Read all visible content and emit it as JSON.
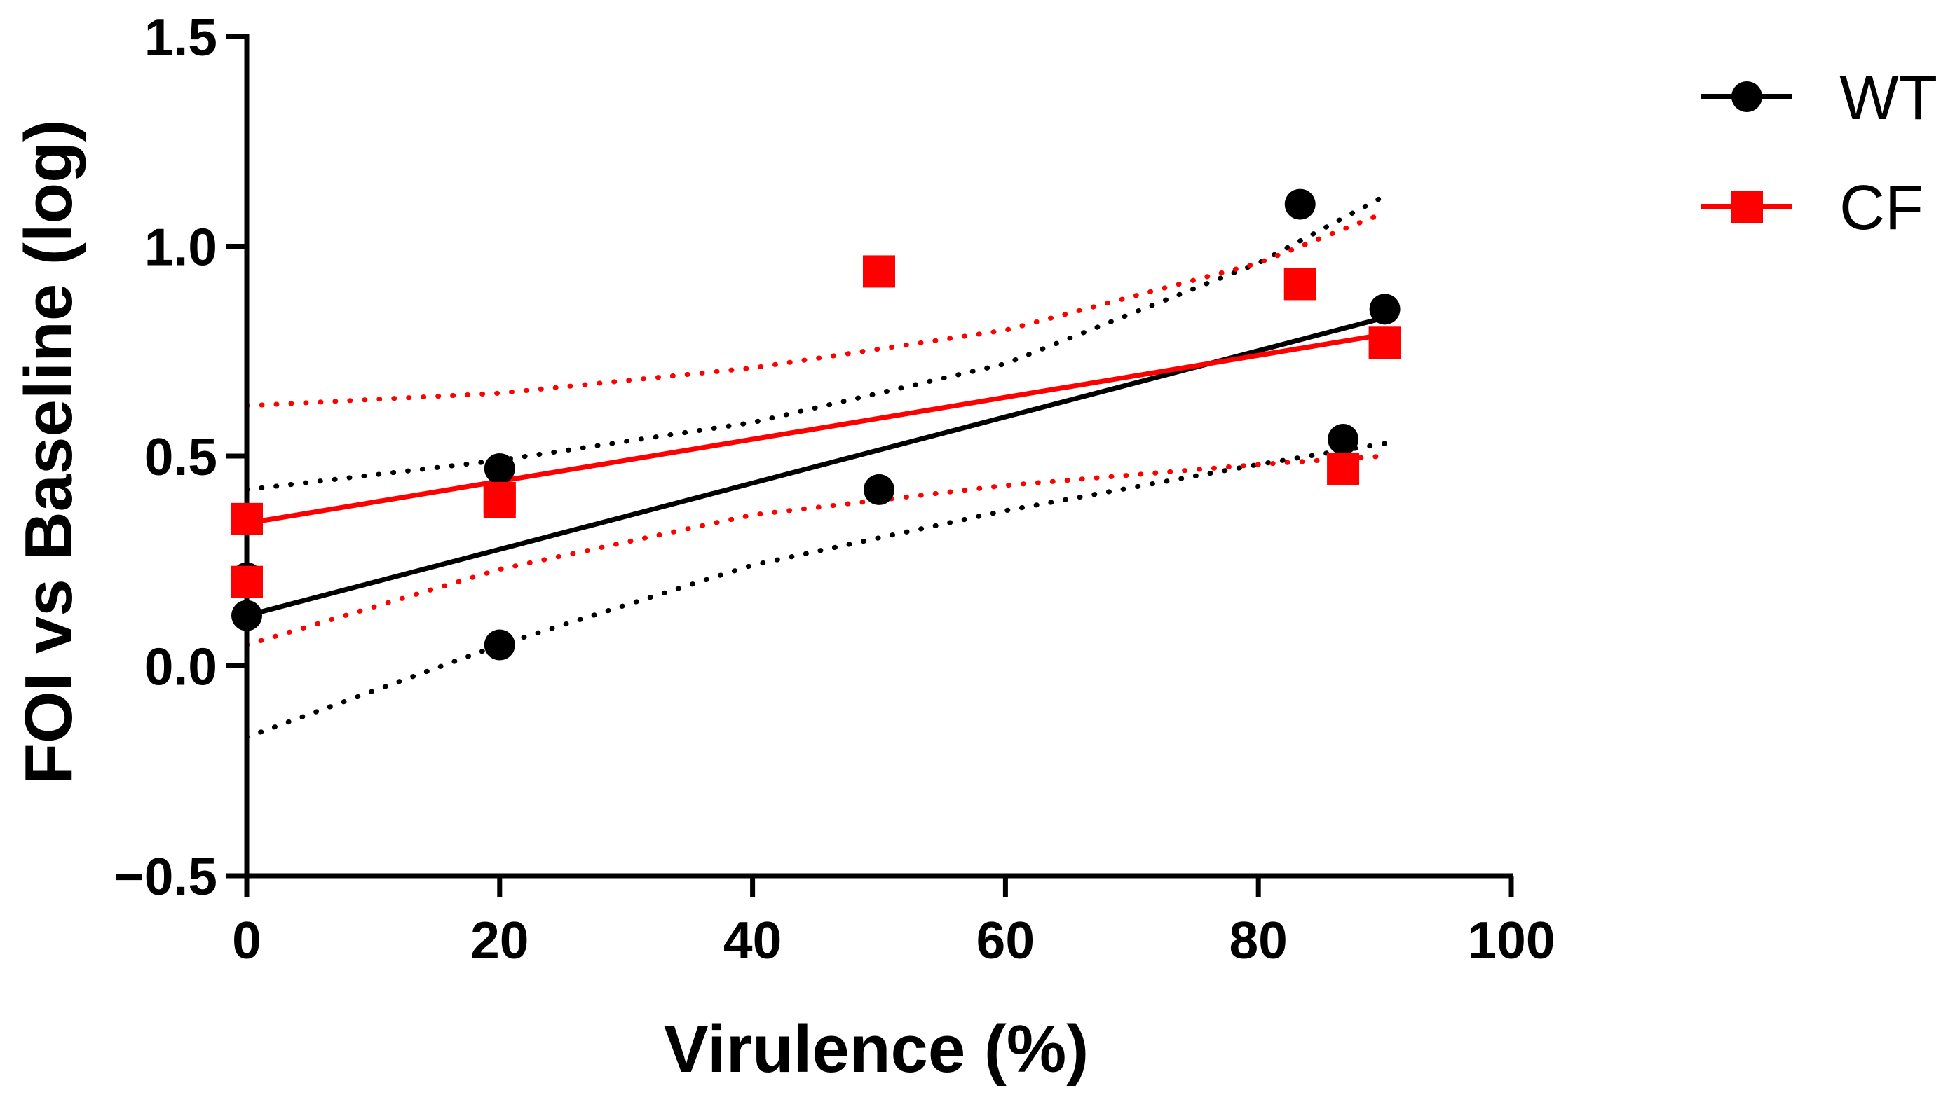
{
  "chart_data": {
    "type": "scatter",
    "title": "",
    "xlabel": "Virulence (%)",
    "ylabel": "FOI vs Baseline (log)",
    "xlim": [
      0,
      100
    ],
    "ylim": [
      -0.5,
      1.5
    ],
    "x_ticks": [
      0,
      20,
      40,
      60,
      80,
      100
    ],
    "x_tick_labels": [
      "0",
      "20",
      "40",
      "60",
      "80",
      "100"
    ],
    "y_ticks": [
      -0.5,
      0.0,
      0.5,
      1.0,
      1.5
    ],
    "y_tick_labels": [
      "−0.5",
      "0.0",
      "0.5",
      "1.0",
      "1.5"
    ],
    "legend_position": "top-right",
    "series": [
      {
        "name": "WT",
        "color": "#000000",
        "marker": "circle",
        "points": [
          [
            0,
            0.21
          ],
          [
            0,
            0.12
          ],
          [
            20,
            0.47
          ],
          [
            20,
            0.05
          ],
          [
            50,
            0.42
          ],
          [
            83.3,
            1.1
          ],
          [
            86.7,
            0.54
          ],
          [
            90,
            0.85
          ]
        ],
        "fit_line": [
          [
            0,
            0.12
          ],
          [
            90,
            0.83
          ]
        ],
        "ci_upper": [
          [
            0,
            0.42
          ],
          [
            20,
            0.49
          ],
          [
            40,
            0.58
          ],
          [
            60,
            0.72
          ],
          [
            80,
            0.96
          ],
          [
            90,
            1.12
          ]
        ],
        "ci_lower": [
          [
            0,
            -0.17
          ],
          [
            20,
            0.05
          ],
          [
            40,
            0.24
          ],
          [
            60,
            0.37
          ],
          [
            80,
            0.48
          ],
          [
            90,
            0.53
          ]
        ]
      },
      {
        "name": "CF",
        "color": "#ff0000",
        "marker": "square",
        "points": [
          [
            0,
            0.35
          ],
          [
            0,
            0.2
          ],
          [
            20,
            0.4
          ],
          [
            20,
            0.39
          ],
          [
            50,
            0.94
          ],
          [
            83.3,
            0.91
          ],
          [
            86.7,
            0.47
          ],
          [
            90,
            0.77
          ]
        ],
        "fit_line": [
          [
            0,
            0.34
          ],
          [
            90,
            0.79
          ]
        ],
        "ci_upper": [
          [
            0,
            0.62
          ],
          [
            20,
            0.65
          ],
          [
            40,
            0.71
          ],
          [
            60,
            0.8
          ],
          [
            80,
            0.96
          ],
          [
            90,
            1.08
          ]
        ],
        "ci_lower": [
          [
            0,
            0.05
          ],
          [
            20,
            0.23
          ],
          [
            40,
            0.36
          ],
          [
            60,
            0.43
          ],
          [
            80,
            0.48
          ],
          [
            90,
            0.5
          ]
        ]
      }
    ]
  }
}
